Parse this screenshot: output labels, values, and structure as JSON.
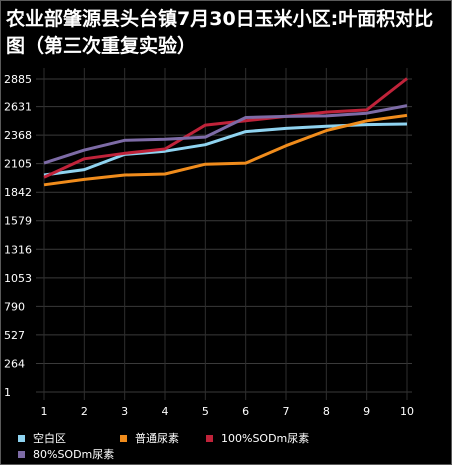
{
  "chart_data": {
    "type": "line",
    "title": "农业部肇源县头台镇7月30日玉米小区:叶面积对比图（第三次重复实验）",
    "categories": [
      1,
      2,
      3,
      4,
      5,
      6,
      7,
      8,
      9,
      10
    ],
    "y_ticks": [
      1,
      264,
      527,
      790,
      1053,
      1316,
      1579,
      1842,
      2105,
      2368,
      2631,
      2885
    ],
    "ylim": [
      1,
      2885
    ],
    "grid": true,
    "legend_position": "bottom",
    "series": [
      {
        "name": "空白区",
        "color": "#8fd3f0",
        "values": [
          2000,
          2050,
          2190,
          2220,
          2280,
          2400,
          2430,
          2450,
          2465,
          2470
        ]
      },
      {
        "name": "普通尿素",
        "color": "#f08c1c",
        "values": [
          1910,
          1960,
          2000,
          2010,
          2100,
          2110,
          2270,
          2410,
          2500,
          2550
        ]
      },
      {
        "name": "100%SODm尿素",
        "color": "#c0233a",
        "values": [
          1980,
          2150,
          2200,
          2240,
          2460,
          2500,
          2540,
          2580,
          2600,
          2890
        ]
      },
      {
        "name": "80%SODm尿素",
        "color": "#7d6ba6",
        "values": [
          2110,
          2230,
          2320,
          2330,
          2350,
          2530,
          2540,
          2545,
          2570,
          2640
        ]
      }
    ]
  }
}
